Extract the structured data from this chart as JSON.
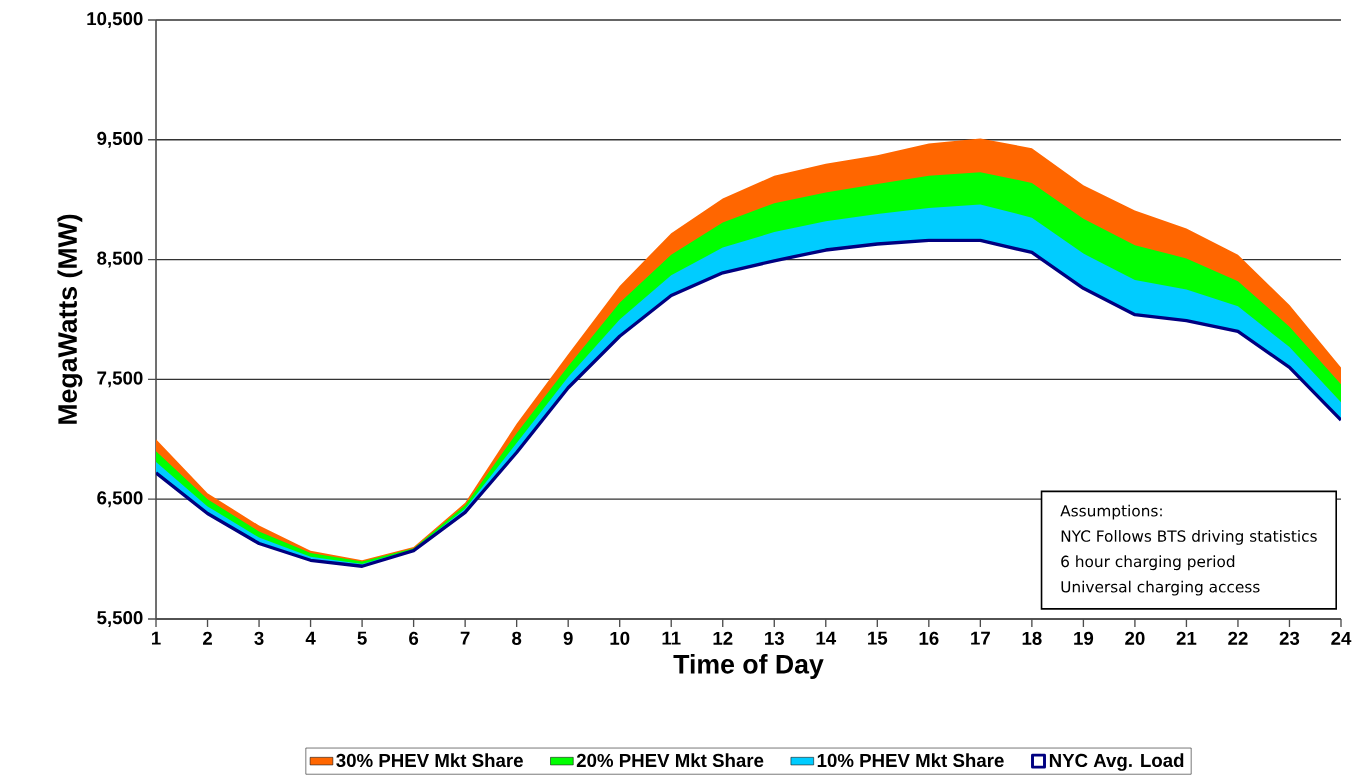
{
  "chart_data": {
    "type": "area",
    "xlabel": "Time of Day",
    "ylabel": "MegaWatts (MW)",
    "x": [
      1,
      2,
      3,
      4,
      5,
      6,
      7,
      8,
      9,
      10,
      11,
      12,
      13,
      14,
      15,
      16,
      17,
      18,
      19,
      20,
      21,
      22,
      23,
      24
    ],
    "series": [
      {
        "name": "30% PHEV Mkt Share",
        "color": "#ff6600",
        "values": [
          7000,
          6550,
          6280,
          6070,
          5990,
          6100,
          6470,
          7130,
          7710,
          8280,
          8720,
          9010,
          9200,
          9300,
          9370,
          9470,
          9510,
          9430,
          9120,
          8910,
          8760,
          8540,
          8120,
          7600
        ]
      },
      {
        "name": "20% PHEV Mkt Share",
        "color": "#00ff00",
        "values": [
          6900,
          6500,
          6230,
          6050,
          5980,
          6090,
          6450,
          7050,
          7610,
          8140,
          8540,
          8810,
          8970,
          9060,
          9130,
          9200,
          9230,
          9140,
          8840,
          8620,
          8510,
          8320,
          7940,
          7460
        ]
      },
      {
        "name": "10% PHEV Mkt Share",
        "color": "#00ccff",
        "values": [
          6810,
          6440,
          6180,
          6020,
          5960,
          6080,
          6420,
          6970,
          7520,
          8000,
          8370,
          8600,
          8730,
          8820,
          8880,
          8930,
          8960,
          8850,
          8550,
          8330,
          8250,
          8110,
          7770,
          7310
        ]
      },
      {
        "name": "NYC Avg. Load",
        "type": "line",
        "color": "#000080",
        "values": [
          6720,
          6380,
          6130,
          5990,
          5940,
          6070,
          6390,
          6890,
          7430,
          7860,
          8200,
          8390,
          8490,
          8580,
          8630,
          8660,
          8660,
          8560,
          8260,
          8040,
          7990,
          7900,
          7600,
          7160
        ]
      }
    ],
    "xlim": [
      1,
      24
    ],
    "xticks": [
      1,
      2,
      3,
      4,
      5,
      6,
      7,
      8,
      9,
      10,
      11,
      12,
      13,
      14,
      15,
      16,
      17,
      18,
      19,
      20,
      21,
      22,
      23,
      24
    ],
    "ylim": [
      5500,
      10500
    ],
    "yticks": [
      {
        "value": 5500,
        "label": "5,500"
      },
      {
        "value": 6500,
        "label": "6,500"
      },
      {
        "value": 7500,
        "label": "7,500"
      },
      {
        "value": 8500,
        "label": "8,500"
      },
      {
        "value": 9500,
        "label": "9,500"
      },
      {
        "value": 10500,
        "label": "10,500"
      }
    ],
    "grid": "y",
    "legend": "bottom",
    "annotations": [
      "Assumptions:",
      "NYC Follows BTS driving statistics",
      "6 hour charging period",
      "Universal charging access"
    ]
  }
}
